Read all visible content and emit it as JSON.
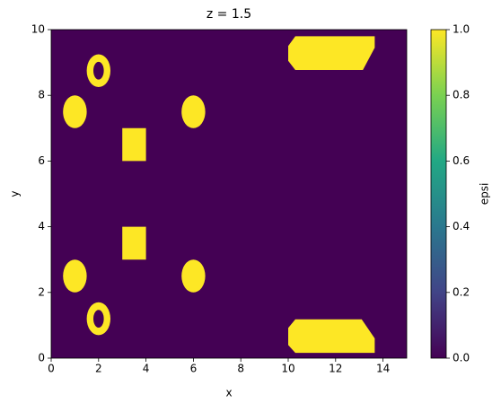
{
  "chart_data": {
    "type": "image",
    "title": "z = 1.5",
    "xlabel": "x",
    "ylabel": "y",
    "xlim": [
      0,
      15
    ],
    "ylim": [
      0,
      10
    ],
    "xticks": [
      0,
      2,
      4,
      6,
      8,
      10,
      12,
      14
    ],
    "yticks": [
      0,
      2,
      4,
      6,
      8,
      10
    ],
    "background": 0,
    "shapes": [
      {
        "kind": "ellipse",
        "cx": 1,
        "cy": 7.5,
        "rx": 0.5,
        "ry": 0.5,
        "value": 1
      },
      {
        "kind": "ellipse",
        "cx": 6,
        "cy": 7.5,
        "rx": 0.5,
        "ry": 0.5,
        "value": 1
      },
      {
        "kind": "ellipse",
        "cx": 1,
        "cy": 2.5,
        "rx": 0.5,
        "ry": 0.5,
        "value": 1
      },
      {
        "kind": "ellipse",
        "cx": 6,
        "cy": 2.5,
        "rx": 0.5,
        "ry": 0.5,
        "value": 1
      },
      {
        "kind": "ring",
        "cx": 2,
        "cy": 8.75,
        "rx": 0.5,
        "ry": 0.5,
        "inner_rx": 0.22,
        "inner_ry": 0.27,
        "value": 1
      },
      {
        "kind": "ring",
        "cx": 2,
        "cy": 1.2,
        "rx": 0.5,
        "ry": 0.5,
        "inner_rx": 0.22,
        "inner_ry": 0.27,
        "value": 1
      },
      {
        "kind": "polygon",
        "points": [
          [
            3,
            6
          ],
          [
            4,
            6
          ],
          [
            4,
            7
          ],
          [
            3,
            7
          ]
        ],
        "value": 1
      },
      {
        "kind": "polygon",
        "points": [
          [
            3,
            3
          ],
          [
            4,
            3
          ],
          [
            4,
            4
          ],
          [
            3,
            4
          ]
        ],
        "value": 1
      },
      {
        "kind": "polygon",
        "points": [
          [
            10.3,
            9.8
          ],
          [
            13.65,
            9.8
          ],
          [
            13.65,
            9.45
          ],
          [
            13.15,
            8.77
          ],
          [
            10.3,
            8.77
          ],
          [
            10,
            9.05
          ],
          [
            10,
            9.5
          ]
        ],
        "value": 1
      },
      {
        "kind": "polygon",
        "points": [
          [
            10.3,
            1.18
          ],
          [
            13.1,
            1.18
          ],
          [
            13.65,
            0.6
          ],
          [
            13.65,
            0.16
          ],
          [
            10.3,
            0.16
          ],
          [
            10,
            0.4
          ],
          [
            10,
            0.92
          ]
        ],
        "value": 1
      }
    ],
    "colorbar": {
      "label": "epsi",
      "lim": [
        0,
        1
      ],
      "ticks": [
        {
          "value": 0,
          "label": "0.0"
        },
        {
          "value": 0.2,
          "label": "0.2"
        },
        {
          "value": 0.4,
          "label": "0.4"
        },
        {
          "value": 0.6,
          "label": "0.6"
        },
        {
          "value": 0.8,
          "label": "0.8"
        },
        {
          "value": 1,
          "label": "1.0"
        }
      ],
      "colormap": [
        "#440154",
        "#414487",
        "#2a788e",
        "#22a884",
        "#7ad151",
        "#fde725"
      ]
    }
  }
}
